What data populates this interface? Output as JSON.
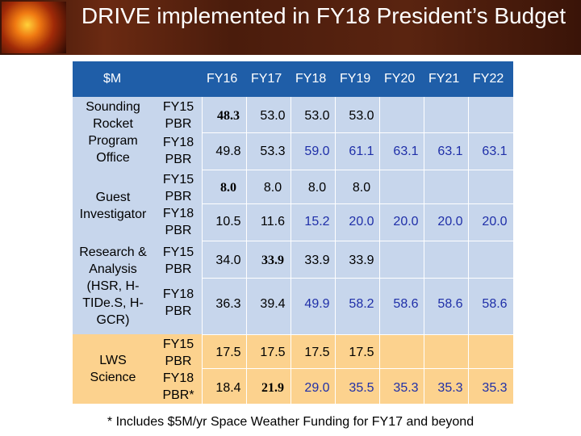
{
  "title": "DRIVE implemented in FY18 President’s Budget",
  "header": {
    "unit": "$M",
    "years": [
      "FY16",
      "FY17",
      "FY18",
      "FY19",
      "FY20",
      "FY21",
      "FY22"
    ]
  },
  "groups": [
    {
      "label_lines": [
        "Sounding",
        "Rocket",
        "Program",
        "Office"
      ],
      "rows": [
        {
          "budget": [
            "FY15",
            "PBR"
          ],
          "values": [
            "48.3",
            "53.0",
            "53.0",
            "53.0",
            "",
            "",
            ""
          ]
        },
        {
          "budget": [
            "FY18",
            "PBR"
          ],
          "values": [
            "49.8",
            "53.3",
            "59.0",
            "61.1",
            "63.1",
            "63.1",
            "63.1"
          ]
        }
      ]
    },
    {
      "label_lines": [
        "Guest",
        "Investigator"
      ],
      "rows": [
        {
          "budget": [
            "FY15",
            "PBR"
          ],
          "values": [
            "8.0",
            "8.0",
            "8.0",
            "8.0",
            "",
            "",
            ""
          ]
        },
        {
          "budget": [
            "FY18",
            "PBR"
          ],
          "values": [
            "10.5",
            "11.6",
            "15.2",
            "20.0",
            "20.0",
            "20.0",
            "20.0"
          ]
        }
      ]
    },
    {
      "label_lines": [
        "Research &",
        "Analysis",
        "(HSR, H-",
        "TIDe.S, H-",
        "GCR)"
      ],
      "rows": [
        {
          "budget": [
            "FY15",
            "PBR"
          ],
          "values": [
            "34.0",
            "33.9",
            "33.9",
            "33.9",
            "",
            "",
            ""
          ]
        },
        {
          "budget": [
            "FY18",
            "PBR"
          ],
          "values": [
            "36.3",
            "39.4",
            "49.9",
            "58.2",
            "58.6",
            "58.6",
            "58.6"
          ]
        }
      ]
    },
    {
      "label_lines": [
        "LWS",
        "Science"
      ],
      "rows": [
        {
          "budget": [
            "FY15",
            "PBR"
          ],
          "values": [
            "17.5",
            "17.5",
            "17.5",
            "17.5",
            "",
            "",
            ""
          ]
        },
        {
          "budget": [
            "FY18",
            "PBR*"
          ],
          "values": [
            "18.4",
            "21.9",
            "29.0",
            "35.5",
            "35.3",
            "35.3",
            "35.3"
          ]
        }
      ]
    }
  ],
  "footnote": "* Includes $5M/yr Space Weather Funding for FY17 and beyond",
  "colors": {
    "header_bg": "#1f5ea8",
    "blue_rows": "#c7d6ec",
    "orange_rows": "#fcd28e",
    "highlight_text": "#1f2fa8"
  }
}
